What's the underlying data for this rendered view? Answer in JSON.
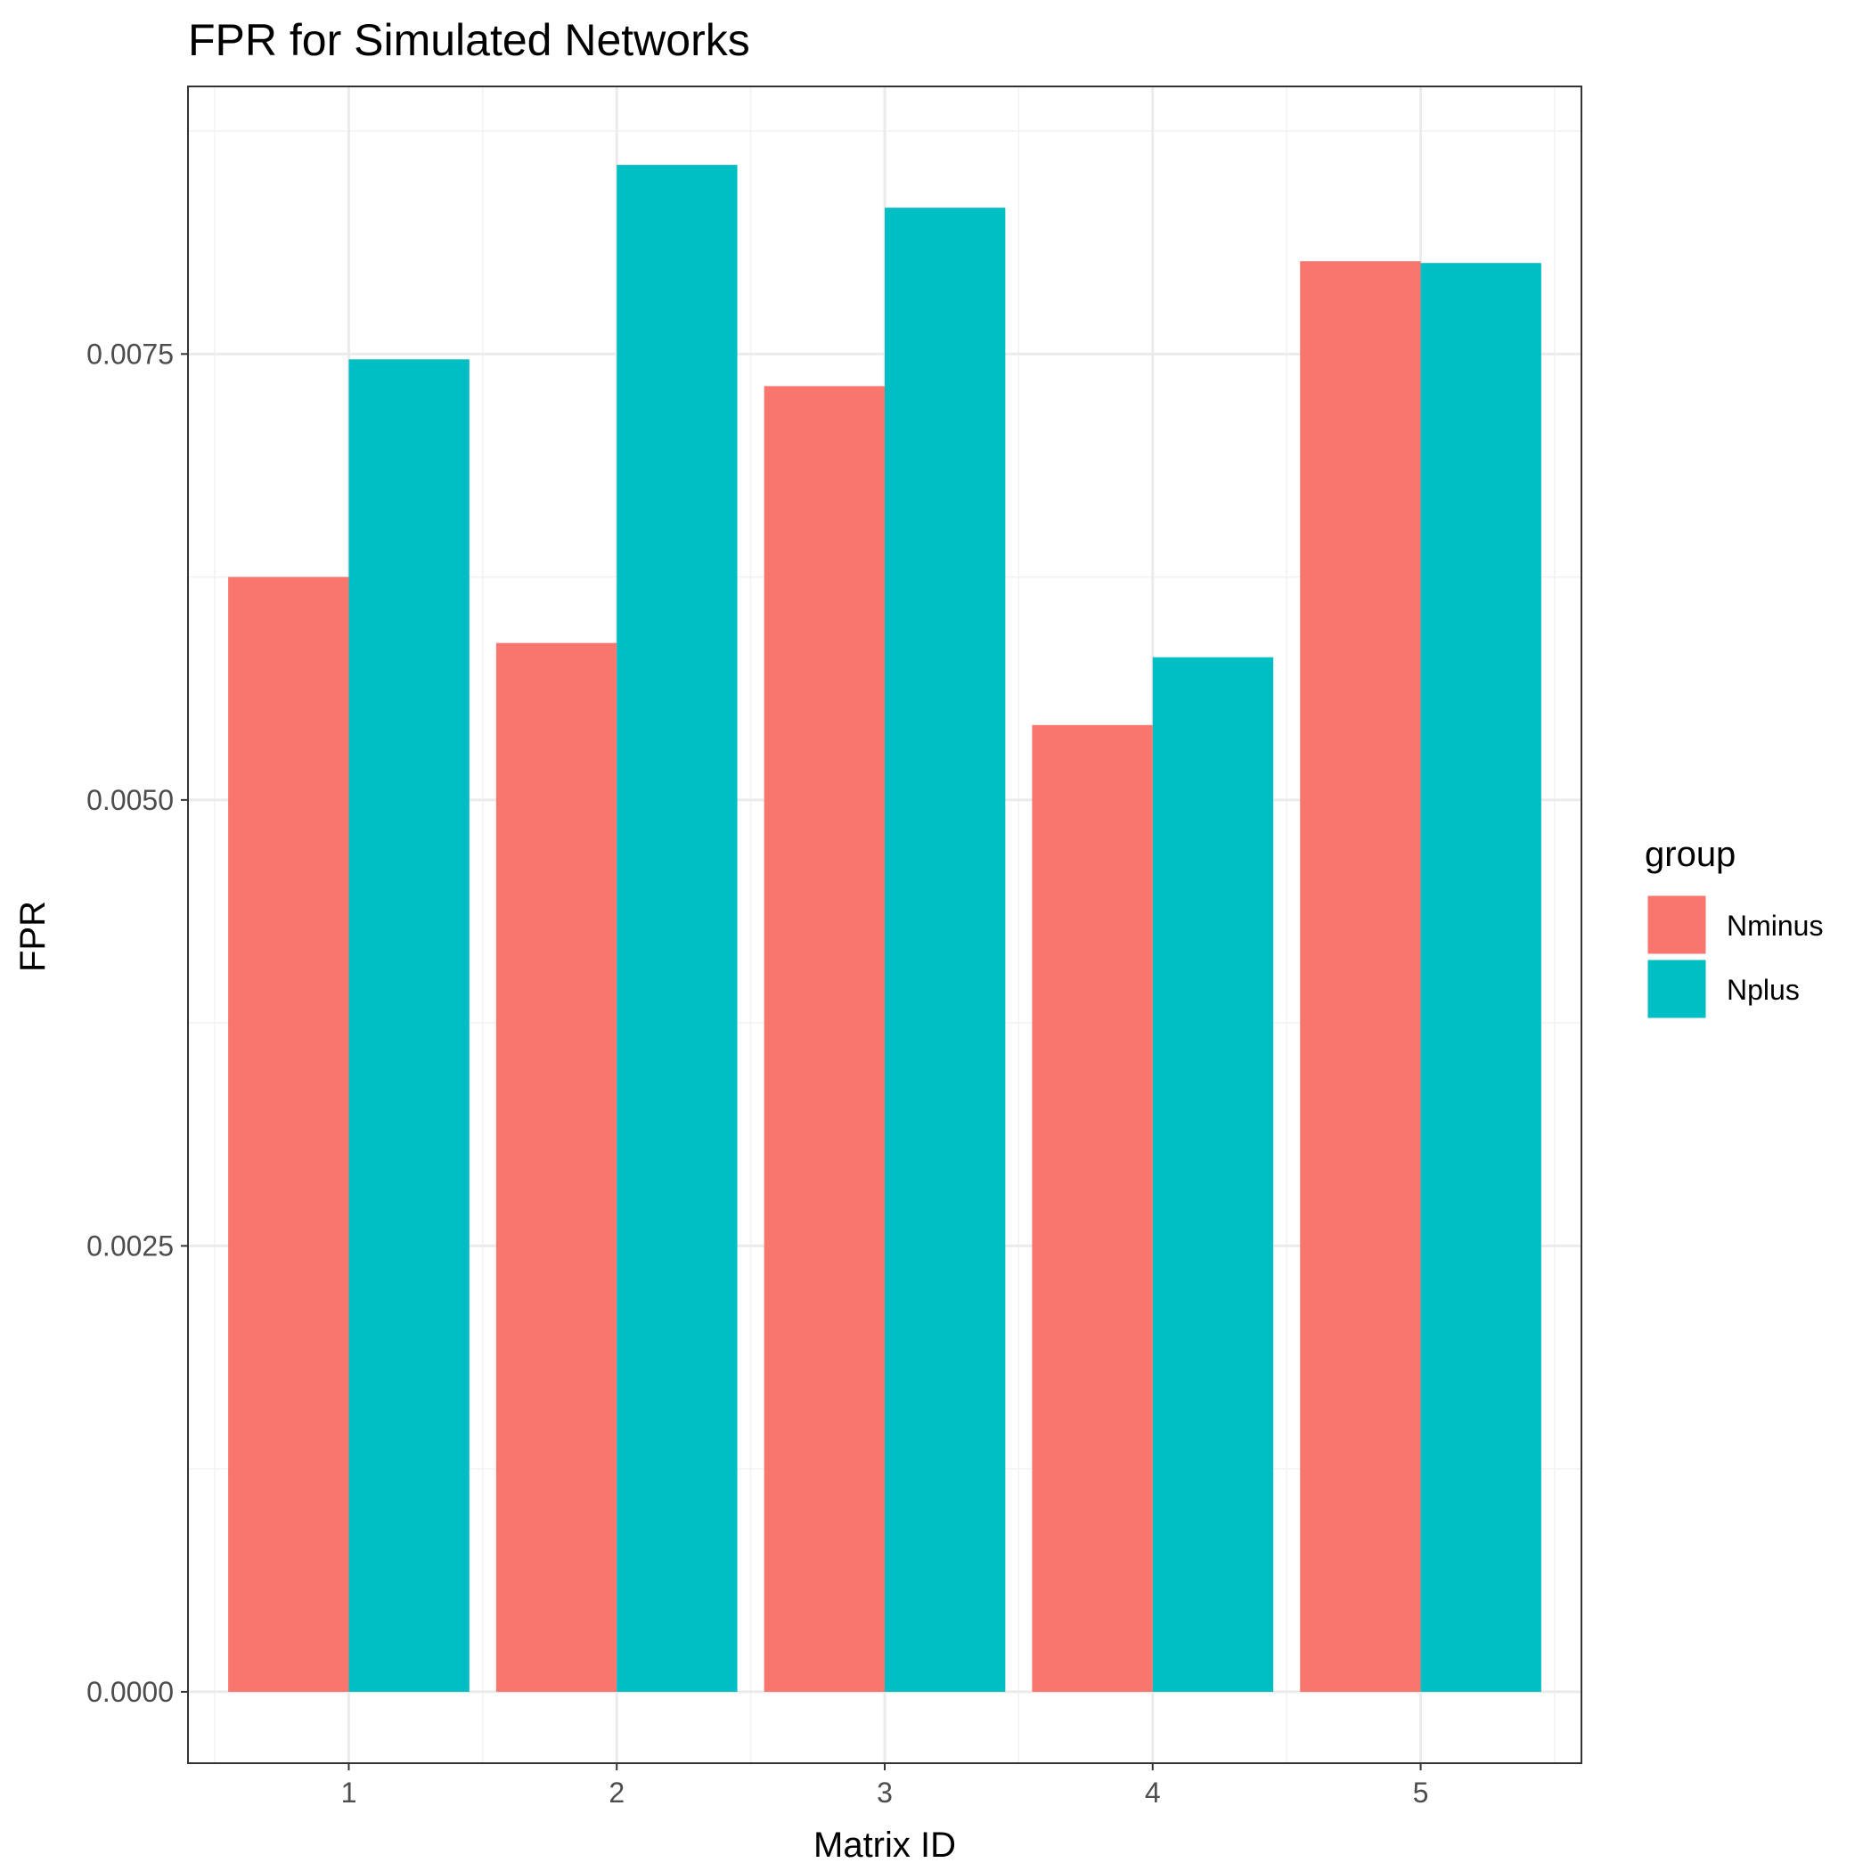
{
  "chart_data": {
    "type": "bar",
    "title": "FPR for Simulated Networks",
    "xlabel": "Matrix ID",
    "ylabel": "FPR",
    "categories": [
      "1",
      "2",
      "3",
      "4",
      "5"
    ],
    "series": [
      {
        "name": "Nminus",
        "color": "#F8766D",
        "values": [
          0.00625,
          0.00588,
          0.00732,
          0.00542,
          0.00802
        ]
      },
      {
        "name": "Nplus",
        "color": "#00BFC4",
        "values": [
          0.00747,
          0.00856,
          0.00832,
          0.0058,
          0.00801
        ]
      }
    ],
    "ylim": [
      -0.0004,
      0.009
    ],
    "yticks": [
      0,
      0.0025,
      0.005,
      0.0075
    ],
    "ytick_labels": [
      "0.0000",
      "0.0025",
      "0.0050",
      "0.0075"
    ],
    "legend": {
      "title": "group",
      "position": "right"
    },
    "grid": true,
    "theme": "bw"
  }
}
